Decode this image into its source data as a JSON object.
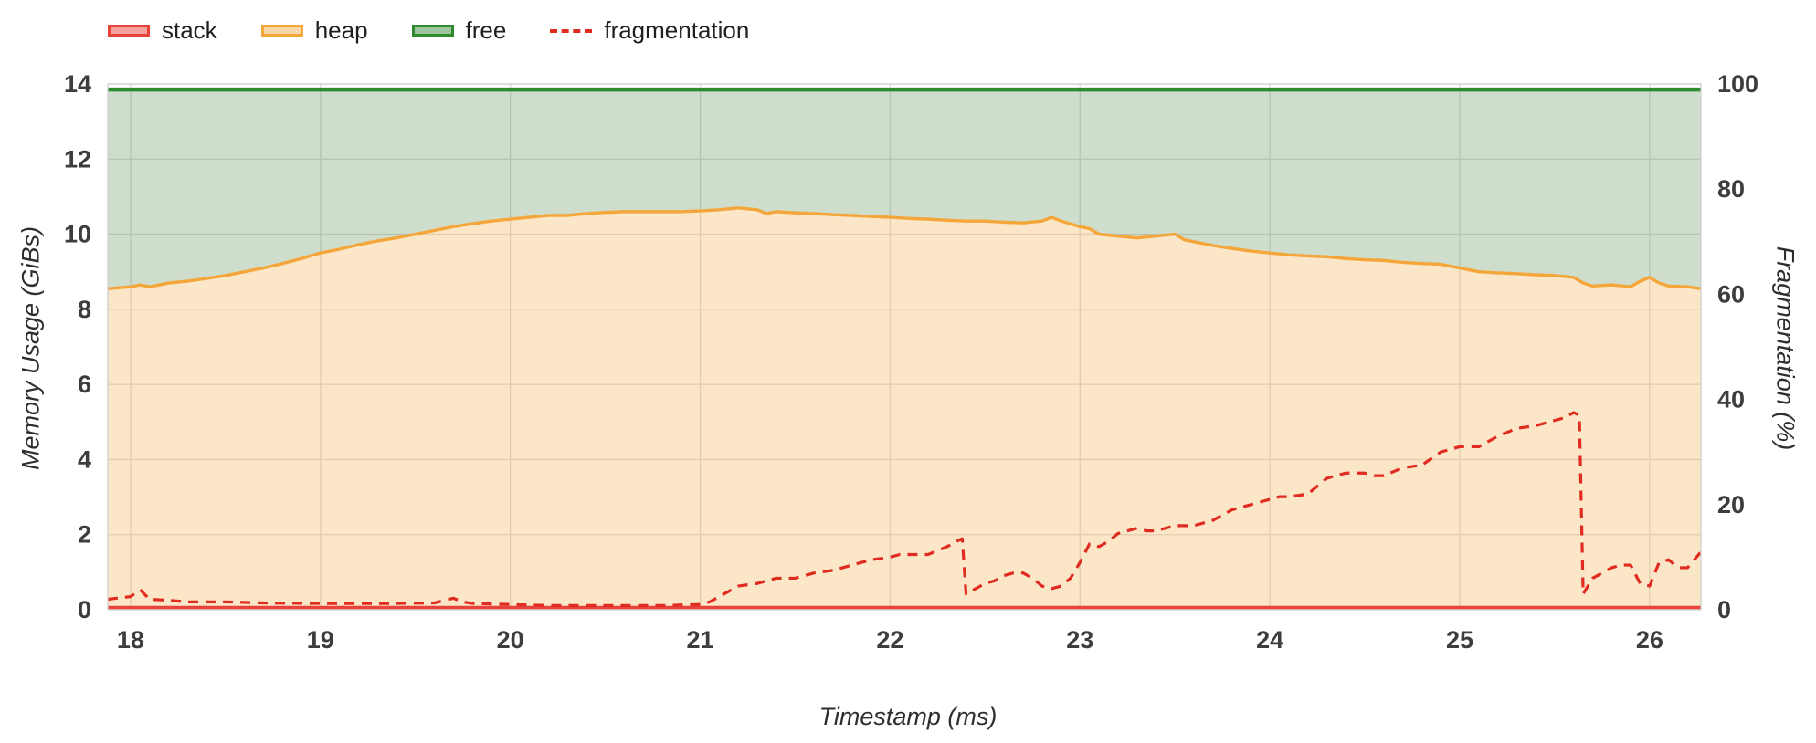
{
  "chart_data": {
    "type": "line",
    "title": "",
    "xlabel": "Timestamp (ms)",
    "ylabel_left": "Memory Usage (GiBs)",
    "ylabel_right": "Fragmentation (%)",
    "x_range": [
      17.88,
      26.27
    ],
    "y_left_range": [
      0,
      14
    ],
    "y_right_range": [
      0,
      100
    ],
    "x_ticks": [
      18,
      19,
      20,
      21,
      22,
      23,
      24,
      25,
      26
    ],
    "y_left_ticks": [
      0,
      2,
      4,
      6,
      8,
      10,
      12,
      14
    ],
    "y_right_ticks": [
      0,
      20,
      40,
      60,
      80,
      100
    ],
    "grid": true,
    "legend_position": "top-left",
    "series": [
      {
        "name": "stack",
        "label": "stack",
        "axis": "left",
        "style": "solid",
        "color": "#e8433a",
        "legend_fill": "rgba(232,67,58,0.5)",
        "value": 0.06
      },
      {
        "name": "heap",
        "label": "heap",
        "axis": "left",
        "style": "solid",
        "color": "#f4a63b",
        "legend_fill": "rgba(244,166,59,0.45)",
        "area_fill": "rgba(244,166,59,0.28)",
        "x": [
          17.88,
          18.0,
          18.05,
          18.1,
          18.2,
          18.3,
          18.4,
          18.5,
          18.6,
          18.7,
          18.8,
          18.9,
          19.0,
          19.1,
          19.2,
          19.3,
          19.4,
          19.5,
          19.6,
          19.7,
          19.8,
          19.9,
          20.0,
          20.1,
          20.2,
          20.3,
          20.4,
          20.5,
          20.6,
          20.7,
          20.8,
          20.9,
          21.0,
          21.1,
          21.2,
          21.3,
          21.35,
          21.4,
          21.5,
          21.6,
          21.7,
          21.8,
          21.9,
          22.0,
          22.1,
          22.2,
          22.3,
          22.4,
          22.5,
          22.6,
          22.7,
          22.8,
          22.85,
          22.9,
          23.0,
          23.05,
          23.1,
          23.2,
          23.3,
          23.4,
          23.5,
          23.55,
          23.6,
          23.7,
          23.8,
          23.9,
          24.0,
          24.1,
          24.2,
          24.3,
          24.4,
          24.5,
          24.6,
          24.7,
          24.8,
          24.9,
          25.0,
          25.1,
          25.2,
          25.3,
          25.4,
          25.5,
          25.6,
          25.65,
          25.7,
          25.8,
          25.9,
          25.95,
          26.0,
          26.05,
          26.1,
          26.2,
          26.27
        ],
        "y": [
          8.55,
          8.6,
          8.65,
          8.6,
          8.7,
          8.75,
          8.82,
          8.9,
          9.0,
          9.1,
          9.22,
          9.35,
          9.5,
          9.6,
          9.72,
          9.82,
          9.9,
          10.0,
          10.1,
          10.2,
          10.28,
          10.35,
          10.4,
          10.45,
          10.5,
          10.5,
          10.55,
          10.58,
          10.6,
          10.6,
          10.6,
          10.6,
          10.62,
          10.65,
          10.7,
          10.65,
          10.55,
          10.6,
          10.57,
          10.55,
          10.52,
          10.5,
          10.47,
          10.45,
          10.42,
          10.4,
          10.37,
          10.35,
          10.35,
          10.32,
          10.3,
          10.35,
          10.45,
          10.35,
          10.2,
          10.15,
          10.0,
          9.95,
          9.9,
          9.95,
          10.0,
          9.85,
          9.8,
          9.7,
          9.62,
          9.55,
          9.5,
          9.45,
          9.42,
          9.4,
          9.35,
          9.32,
          9.3,
          9.25,
          9.22,
          9.2,
          9.1,
          9.0,
          8.97,
          8.95,
          8.92,
          8.9,
          8.85,
          8.7,
          8.62,
          8.65,
          8.6,
          8.75,
          8.85,
          8.7,
          8.62,
          8.6,
          8.55
        ]
      },
      {
        "name": "free",
        "label": "free",
        "axis": "left",
        "style": "solid",
        "color": "#2e8b2e",
        "legend_fill": "rgba(62,139,62,0.5)",
        "area_fill": "rgba(62,124,52,0.25)",
        "value": 13.85
      },
      {
        "name": "fragmentation",
        "label": "fragmentation",
        "axis": "right",
        "style": "dashed",
        "color": "#e02b20",
        "x": [
          17.88,
          18.0,
          18.05,
          18.1,
          18.2,
          18.3,
          18.5,
          18.7,
          19.0,
          19.2,
          19.4,
          19.6,
          19.7,
          19.75,
          19.8,
          20.0,
          20.2,
          20.4,
          20.6,
          20.8,
          21.0,
          21.05,
          21.1,
          21.15,
          21.2,
          21.3,
          21.35,
          21.4,
          21.5,
          21.55,
          21.6,
          21.7,
          21.8,
          21.9,
          22.0,
          22.05,
          22.1,
          22.2,
          22.3,
          22.35,
          22.38,
          22.4,
          22.45,
          22.5,
          22.55,
          22.6,
          22.65,
          22.7,
          22.75,
          22.8,
          22.85,
          22.9,
          22.95,
          23.0,
          23.05,
          23.1,
          23.15,
          23.2,
          23.3,
          23.35,
          23.4,
          23.5,
          23.6,
          23.7,
          23.8,
          23.9,
          24.0,
          24.05,
          24.1,
          24.2,
          24.3,
          24.4,
          24.5,
          24.55,
          24.6,
          24.7,
          24.8,
          24.9,
          25.0,
          25.1,
          25.2,
          25.3,
          25.4,
          25.5,
          25.55,
          25.6,
          25.63,
          25.65,
          25.7,
          25.8,
          25.85,
          25.9,
          25.95,
          26.0,
          26.05,
          26.1,
          26.15,
          26.2,
          26.27
        ],
        "y": [
          2,
          2.5,
          3.8,
          2,
          1.8,
          1.5,
          1.5,
          1.3,
          1.2,
          1.2,
          1.2,
          1.3,
          2.2,
          1.5,
          1.2,
          1.0,
          0.8,
          0.8,
          0.8,
          0.8,
          1.0,
          1.5,
          2.5,
          3.5,
          4.5,
          5,
          5.5,
          6,
          6,
          6.5,
          7,
          7.5,
          8.5,
          9.5,
          10,
          10.5,
          10.5,
          10.5,
          12,
          13,
          13.5,
          3,
          4,
          5,
          5.5,
          6.5,
          7,
          7,
          6,
          4.5,
          4,
          4.5,
          6,
          9,
          12.5,
          12,
          13,
          14.5,
          15.5,
          15,
          15,
          16,
          16,
          17,
          19,
          20,
          21,
          21.5,
          21.5,
          22,
          25,
          26,
          26,
          25.5,
          25.5,
          27,
          27.5,
          30,
          31,
          31,
          33,
          34.5,
          35,
          36,
          36.5,
          37.5,
          37,
          3,
          6,
          8,
          8.5,
          8.5,
          5,
          4.5,
          9,
          9.5,
          8,
          8,
          11
        ]
      }
    ]
  }
}
